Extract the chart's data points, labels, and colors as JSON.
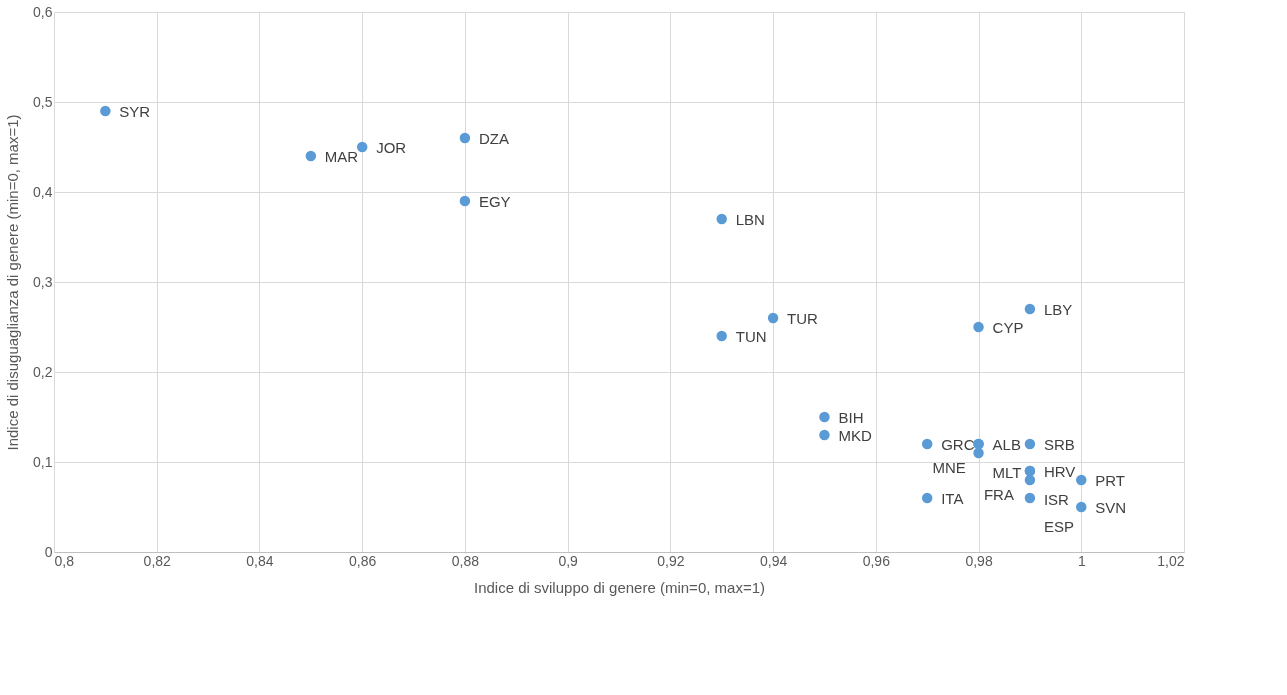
{
  "chart_data": {
    "type": "scatter",
    "xlabel": "Indice di sviluppo di genere (min=0, max=1)",
    "ylabel": "Indice di disuguaglianza di genere (min=0, max=1)",
    "x": [
      0.81,
      0.85,
      0.86,
      0.88,
      0.88,
      0.93,
      0.94,
      0.93,
      0.98,
      0.99,
      0.95,
      0.95,
      0.97,
      0.98,
      0.98,
      0.98,
      0.99,
      0.99,
      0.99,
      0.99,
      1.0,
      0.97,
      0.99,
      1.0
    ],
    "values": [
      0.49,
      0.44,
      0.45,
      0.46,
      0.39,
      0.37,
      0.26,
      0.24,
      0.25,
      0.27,
      0.15,
      0.13,
      0.12,
      0.12,
      0.12,
      0.11,
      0.12,
      0.09,
      0.09,
      0.08,
      0.08,
      0.06,
      0.06,
      0.05
    ],
    "value_labels": [
      "SYR",
      "MAR",
      "JOR",
      "DZA",
      "EGY",
      "LBN",
      "TUR",
      "TUN",
      "CYP",
      "LBY",
      "BIH",
      "MKD",
      "GRC",
      "ALB",
      "MLT",
      "MNE",
      "SRB",
      "HRV",
      "ISR",
      "FRA",
      "PRT",
      "ITA",
      "ESP",
      "SVN"
    ],
    "color": "#5b9bd5",
    "marker": "circle",
    "grid": true,
    "xlim": [
      0.8,
      1.02
    ],
    "xticks": [
      {
        "value": 0.8,
        "label": "0,8"
      },
      {
        "value": 0.82,
        "label": "0,82"
      },
      {
        "value": 0.84,
        "label": "0,84"
      },
      {
        "value": 0.86,
        "label": "0,86"
      },
      {
        "value": 0.88,
        "label": "0,88"
      },
      {
        "value": 0.9,
        "label": "0,9"
      },
      {
        "value": 0.92,
        "label": "0,92"
      },
      {
        "value": 0.94,
        "label": "0,94"
      },
      {
        "value": 0.96,
        "label": "0,96"
      },
      {
        "value": 0.98,
        "label": "0,98"
      },
      {
        "value": 1,
        "label": "1"
      },
      {
        "value": 1.02,
        "label": "1,02"
      }
    ],
    "ylim": [
      0,
      0.6
    ],
    "yticks": [
      0,
      {
        "value": 0.1,
        "label": "0,1"
      },
      {
        "value": 0.2,
        "label": "0,2"
      },
      {
        "value": 0.3,
        "label": "0,3"
      },
      {
        "value": 0.4,
        "label": "0,4"
      },
      {
        "value": 0.5,
        "label": "0,5"
      },
      {
        "value": 0.6,
        "label": "0,6"
      }
    ]
  }
}
